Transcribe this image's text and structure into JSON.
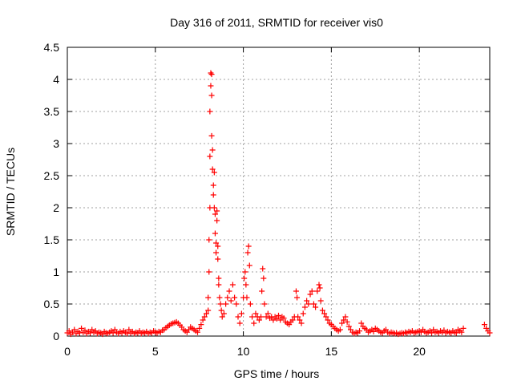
{
  "chart_data": {
    "type": "scatter",
    "title": "Day 316 of 2011, SRMTID for receiver vis0",
    "xlabel": "GPS time / hours",
    "ylabel": "SRMTID / TECUs",
    "xlim": [
      0,
      24
    ],
    "ylim": [
      0,
      4.5
    ],
    "xticks": [
      "0",
      "5",
      "10",
      "15",
      "20"
    ],
    "yticks": [
      "0",
      "0.5",
      "1",
      "1.5",
      "2",
      "2.5",
      "3",
      "3.5",
      "4",
      "4.5"
    ],
    "grid": true,
    "marker": "plus",
    "color": "#ff0000",
    "series": [
      {
        "points": [
          [
            0.0,
            0.05
          ],
          [
            0.1,
            0.08
          ],
          [
            0.2,
            0.03
          ],
          [
            0.3,
            0.06
          ],
          [
            0.4,
            0.1
          ],
          [
            0.5,
            0.04
          ],
          [
            0.6,
            0.07
          ],
          [
            0.7,
            0.05
          ],
          [
            0.8,
            0.12
          ],
          [
            0.9,
            0.06
          ],
          [
            1.0,
            0.09
          ],
          [
            1.1,
            0.04
          ],
          [
            1.2,
            0.07
          ],
          [
            1.3,
            0.05
          ],
          [
            1.4,
            0.1
          ],
          [
            1.5,
            0.06
          ],
          [
            1.6,
            0.08
          ],
          [
            1.7,
            0.04
          ],
          [
            1.8,
            0.06
          ],
          [
            1.9,
            0.05
          ],
          [
            2.0,
            0.03
          ],
          [
            2.1,
            0.07
          ],
          [
            2.2,
            0.05
          ],
          [
            2.3,
            0.04
          ],
          [
            2.4,
            0.06
          ],
          [
            2.5,
            0.08
          ],
          [
            2.6,
            0.05
          ],
          [
            2.7,
            0.1
          ],
          [
            2.8,
            0.06
          ],
          [
            2.9,
            0.04
          ],
          [
            3.0,
            0.07
          ],
          [
            3.1,
            0.05
          ],
          [
            3.2,
            0.08
          ],
          [
            3.3,
            0.06
          ],
          [
            3.4,
            0.04
          ],
          [
            3.5,
            0.1
          ],
          [
            3.6,
            0.05
          ],
          [
            3.7,
            0.07
          ],
          [
            3.8,
            0.04
          ],
          [
            3.9,
            0.06
          ],
          [
            4.0,
            0.05
          ],
          [
            4.1,
            0.08
          ],
          [
            4.2,
            0.04
          ],
          [
            4.3,
            0.06
          ],
          [
            4.4,
            0.05
          ],
          [
            4.5,
            0.07
          ],
          [
            4.6,
            0.04
          ],
          [
            4.7,
            0.06
          ],
          [
            4.8,
            0.05
          ],
          [
            4.9,
            0.08
          ],
          [
            5.0,
            0.06
          ],
          [
            5.1,
            0.05
          ],
          [
            5.2,
            0.07
          ],
          [
            5.3,
            0.06
          ],
          [
            5.4,
            0.09
          ],
          [
            5.5,
            0.1
          ],
          [
            5.6,
            0.13
          ],
          [
            5.7,
            0.15
          ],
          [
            5.8,
            0.17
          ],
          [
            5.9,
            0.19
          ],
          [
            6.0,
            0.2
          ],
          [
            6.1,
            0.21
          ],
          [
            6.2,
            0.22
          ],
          [
            6.3,
            0.2
          ],
          [
            6.4,
            0.17
          ],
          [
            6.5,
            0.14
          ],
          [
            6.6,
            0.1
          ],
          [
            6.7,
            0.08
          ],
          [
            6.8,
            0.06
          ],
          [
            6.9,
            0.1
          ],
          [
            7.0,
            0.14
          ],
          [
            7.1,
            0.12
          ],
          [
            7.2,
            0.1
          ],
          [
            7.3,
            0.08
          ],
          [
            7.4,
            0.06
          ],
          [
            7.5,
            0.12
          ],
          [
            7.6,
            0.18
          ],
          [
            7.7,
            0.25
          ],
          [
            7.8,
            0.3
          ],
          [
            7.9,
            0.35
          ],
          [
            8.0,
            0.4
          ],
          [
            8.0,
            0.6
          ],
          [
            8.05,
            1.0
          ],
          [
            8.05,
            1.5
          ],
          [
            8.1,
            2.0
          ],
          [
            8.1,
            2.8
          ],
          [
            8.1,
            3.5
          ],
          [
            8.15,
            4.1
          ],
          [
            8.15,
            3.9
          ],
          [
            8.2,
            4.08
          ],
          [
            8.2,
            3.75
          ],
          [
            8.2,
            3.12
          ],
          [
            8.25,
            2.9
          ],
          [
            8.25,
            2.6
          ],
          [
            8.3,
            2.35
          ],
          [
            8.3,
            2.2
          ],
          [
            8.35,
            2.55
          ],
          [
            8.35,
            2.0
          ],
          [
            8.4,
            1.9
          ],
          [
            8.4,
            1.6
          ],
          [
            8.45,
            1.45
          ],
          [
            8.45,
            1.3
          ],
          [
            8.5,
            1.95
          ],
          [
            8.5,
            1.8
          ],
          [
            8.55,
            1.4
          ],
          [
            8.55,
            1.2
          ],
          [
            8.6,
            0.9
          ],
          [
            8.6,
            0.8
          ],
          [
            8.65,
            0.6
          ],
          [
            8.7,
            0.5
          ],
          [
            8.75,
            0.4
          ],
          [
            8.8,
            0.3
          ],
          [
            8.9,
            0.35
          ],
          [
            9.0,
            0.5
          ],
          [
            9.1,
            0.6
          ],
          [
            9.2,
            0.7
          ],
          [
            9.3,
            0.55
          ],
          [
            9.4,
            0.8
          ],
          [
            9.5,
            0.6
          ],
          [
            9.6,
            0.5
          ],
          [
            9.7,
            0.3
          ],
          [
            9.8,
            0.2
          ],
          [
            9.9,
            0.35
          ],
          [
            10.0,
            0.6
          ],
          [
            10.05,
            0.9
          ],
          [
            10.1,
            1.0
          ],
          [
            10.15,
            0.8
          ],
          [
            10.2,
            0.6
          ],
          [
            10.25,
            1.3
          ],
          [
            10.3,
            1.4
          ],
          [
            10.35,
            1.1
          ],
          [
            10.4,
            0.5
          ],
          [
            10.5,
            0.3
          ],
          [
            10.6,
            0.2
          ],
          [
            10.7,
            0.35
          ],
          [
            10.8,
            0.3
          ],
          [
            10.9,
            0.25
          ],
          [
            11.0,
            0.3
          ],
          [
            11.05,
            0.7
          ],
          [
            11.1,
            1.05
          ],
          [
            11.15,
            0.9
          ],
          [
            11.2,
            0.5
          ],
          [
            11.3,
            0.3
          ],
          [
            11.4,
            0.35
          ],
          [
            11.5,
            0.28
          ],
          [
            11.6,
            0.3
          ],
          [
            11.7,
            0.25
          ],
          [
            11.8,
            0.3
          ],
          [
            11.9,
            0.27
          ],
          [
            12.0,
            0.32
          ],
          [
            12.1,
            0.25
          ],
          [
            12.2,
            0.3
          ],
          [
            12.3,
            0.28
          ],
          [
            12.4,
            0.22
          ],
          [
            12.5,
            0.2
          ],
          [
            12.6,
            0.18
          ],
          [
            12.7,
            0.22
          ],
          [
            12.8,
            0.25
          ],
          [
            12.9,
            0.3
          ],
          [
            13.0,
            0.7
          ],
          [
            13.05,
            0.6
          ],
          [
            13.1,
            0.3
          ],
          [
            13.2,
            0.25
          ],
          [
            13.3,
            0.2
          ],
          [
            13.4,
            0.35
          ],
          [
            13.5,
            0.45
          ],
          [
            13.6,
            0.55
          ],
          [
            13.7,
            0.5
          ],
          [
            13.8,
            0.65
          ],
          [
            13.9,
            0.7
          ],
          [
            14.0,
            0.5
          ],
          [
            14.1,
            0.45
          ],
          [
            14.2,
            0.7
          ],
          [
            14.3,
            0.8
          ],
          [
            14.35,
            0.75
          ],
          [
            14.4,
            0.55
          ],
          [
            14.5,
            0.4
          ],
          [
            14.6,
            0.35
          ],
          [
            14.7,
            0.3
          ],
          [
            14.8,
            0.25
          ],
          [
            14.9,
            0.2
          ],
          [
            15.0,
            0.18
          ],
          [
            15.1,
            0.15
          ],
          [
            15.2,
            0.12
          ],
          [
            15.3,
            0.1
          ],
          [
            15.4,
            0.08
          ],
          [
            15.5,
            0.1
          ],
          [
            15.6,
            0.2
          ],
          [
            15.7,
            0.25
          ],
          [
            15.8,
            0.3
          ],
          [
            15.9,
            0.22
          ],
          [
            16.0,
            0.15
          ],
          [
            16.1,
            0.1
          ],
          [
            16.2,
            0.06
          ],
          [
            16.3,
            0.04
          ],
          [
            16.4,
            0.06
          ],
          [
            16.5,
            0.05
          ],
          [
            16.6,
            0.08
          ],
          [
            16.7,
            0.2
          ],
          [
            16.8,
            0.15
          ],
          [
            16.9,
            0.12
          ],
          [
            17.0,
            0.1
          ],
          [
            17.1,
            0.06
          ],
          [
            17.2,
            0.08
          ],
          [
            17.3,
            0.1
          ],
          [
            17.4,
            0.07
          ],
          [
            17.5,
            0.12
          ],
          [
            17.6,
            0.1
          ],
          [
            17.7,
            0.08
          ],
          [
            17.8,
            0.06
          ],
          [
            17.9,
            0.05
          ],
          [
            18.0,
            0.08
          ],
          [
            18.1,
            0.1
          ],
          [
            18.2,
            0.06
          ],
          [
            18.3,
            0.04
          ],
          [
            18.4,
            0.06
          ],
          [
            18.5,
            0.05
          ],
          [
            18.6,
            0.04
          ],
          [
            18.7,
            0.05
          ],
          [
            18.8,
            0.03
          ],
          [
            18.9,
            0.04
          ],
          [
            19.0,
            0.05
          ],
          [
            19.1,
            0.04
          ],
          [
            19.2,
            0.06
          ],
          [
            19.3,
            0.05
          ],
          [
            19.4,
            0.07
          ],
          [
            19.5,
            0.06
          ],
          [
            19.6,
            0.08
          ],
          [
            19.7,
            0.05
          ],
          [
            19.8,
            0.06
          ],
          [
            19.9,
            0.07
          ],
          [
            20.0,
            0.08
          ],
          [
            20.1,
            0.06
          ],
          [
            20.2,
            0.1
          ],
          [
            20.3,
            0.07
          ],
          [
            20.4,
            0.05
          ],
          [
            20.5,
            0.06
          ],
          [
            20.6,
            0.08
          ],
          [
            20.7,
            0.05
          ],
          [
            20.8,
            0.1
          ],
          [
            20.9,
            0.06
          ],
          [
            21.0,
            0.07
          ],
          [
            21.1,
            0.05
          ],
          [
            21.2,
            0.08
          ],
          [
            21.3,
            0.06
          ],
          [
            21.4,
            0.09
          ],
          [
            21.5,
            0.05
          ],
          [
            21.6,
            0.07
          ],
          [
            21.7,
            0.06
          ],
          [
            21.8,
            0.05
          ],
          [
            21.9,
            0.08
          ],
          [
            22.0,
            0.06
          ],
          [
            22.1,
            0.05
          ],
          [
            22.2,
            0.1
          ],
          [
            22.3,
            0.08
          ],
          [
            22.4,
            0.06
          ],
          [
            22.5,
            0.12
          ],
          [
            23.7,
            0.18
          ],
          [
            23.8,
            0.12
          ],
          [
            23.9,
            0.08
          ],
          [
            24.0,
            0.05
          ]
        ]
      }
    ]
  }
}
